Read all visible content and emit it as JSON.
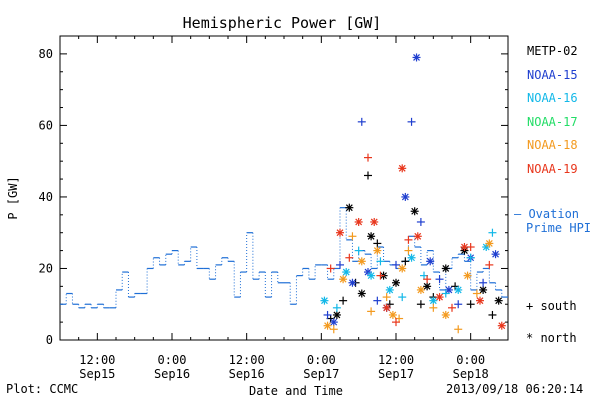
{
  "footer": {
    "plot_credit": "Plot: CCMC",
    "timestamp": "2013/09/18 06:20:14"
  },
  "legend": {
    "satellites": [
      {
        "label": "METP-02",
        "color": "#000000"
      },
      {
        "label": "NOAA-15",
        "color": "#1f3fcf"
      },
      {
        "label": "NOAA-16",
        "color": "#12b8e8"
      },
      {
        "label": "NOAA-17",
        "color": "#22dd66"
      },
      {
        "label": "NOAA-18",
        "color": "#f39a1f"
      },
      {
        "label": "NOAA-19",
        "color": "#e8361c"
      }
    ],
    "ovation_label_line1": "— Ovation",
    "ovation_label_line2": "Prime HPI",
    "ovation_color": "#1f6fd6",
    "marker_south": "+ south",
    "marker_north": "* north"
  },
  "chart_data": {
    "type": "scatter",
    "title": "Hemispheric Power [GW]",
    "ylabel": "P [GW]",
    "xlabel": "Date and Time",
    "ylim": [
      0,
      85
    ],
    "xlim_hours": [
      -18,
      54
    ],
    "x_unit": "hours since 2013-09-16 00:00 UT",
    "y_ticks": [
      0,
      20,
      40,
      60,
      80
    ],
    "x_ticks": [
      {
        "x": -12,
        "top": "12:00",
        "bottom": "Sep15"
      },
      {
        "x": 0,
        "top": "0:00",
        "bottom": "Sep16"
      },
      {
        "x": 12,
        "top": "12:00",
        "bottom": "Sep16"
      },
      {
        "x": 24,
        "top": "0:00",
        "bottom": "Sep17"
      },
      {
        "x": 36,
        "top": "12:00",
        "bottom": "Sep17"
      },
      {
        "x": 48,
        "top": "0:00",
        "bottom": "Sep18"
      }
    ],
    "ovation_series": {
      "name": "Ovation Prime HPI",
      "points": [
        [
          -18,
          10
        ],
        [
          -17,
          13
        ],
        [
          -16,
          10
        ],
        [
          -15,
          9
        ],
        [
          -14,
          10
        ],
        [
          -13,
          9
        ],
        [
          -12,
          10
        ],
        [
          -11,
          9
        ],
        [
          -10,
          9
        ],
        [
          -9,
          14
        ],
        [
          -8,
          19
        ],
        [
          -7,
          12
        ],
        [
          -6,
          13
        ],
        [
          -5,
          13
        ],
        [
          -4,
          20
        ],
        [
          -3,
          23
        ],
        [
          -2,
          21
        ],
        [
          -1,
          24
        ],
        [
          0,
          25
        ],
        [
          1,
          21
        ],
        [
          2,
          22
        ],
        [
          3,
          26
        ],
        [
          4,
          20
        ],
        [
          5,
          20
        ],
        [
          6,
          17
        ],
        [
          7,
          21
        ],
        [
          8,
          23
        ],
        [
          9,
          22
        ],
        [
          10,
          12
        ],
        [
          11,
          19
        ],
        [
          12,
          30
        ],
        [
          13,
          17
        ],
        [
          14,
          19
        ],
        [
          15,
          12
        ],
        [
          16,
          19
        ],
        [
          17,
          16
        ],
        [
          18,
          16
        ],
        [
          19,
          10
        ],
        [
          20,
          18
        ],
        [
          21,
          20
        ],
        [
          22,
          17
        ],
        [
          23,
          21
        ],
        [
          24,
          21
        ],
        [
          25,
          17
        ],
        [
          26,
          20
        ],
        [
          27,
          37
        ],
        [
          28,
          28
        ],
        [
          29,
          22
        ],
        [
          30,
          25
        ],
        [
          31,
          24
        ],
        [
          32,
          20
        ],
        [
          33,
          26
        ],
        [
          34,
          22
        ],
        [
          35,
          21
        ],
        [
          36,
          20
        ],
        [
          37,
          22
        ],
        [
          38,
          29
        ],
        [
          39,
          26
        ],
        [
          40,
          21
        ],
        [
          41,
          25
        ],
        [
          42,
          19
        ],
        [
          43,
          14
        ],
        [
          44,
          20
        ],
        [
          45,
          23
        ],
        [
          46,
          24
        ],
        [
          47,
          22
        ],
        [
          48,
          14
        ],
        [
          49,
          19
        ],
        [
          50,
          20
        ],
        [
          51,
          16
        ],
        [
          52,
          14
        ],
        [
          53,
          12
        ]
      ]
    },
    "series": [
      {
        "name": "METP-02",
        "color": "#000000",
        "points": [
          {
            "x": 25.5,
            "y": 6,
            "m": "+"
          },
          {
            "x": 26.5,
            "y": 7,
            "m": "*"
          },
          {
            "x": 27.5,
            "y": 11,
            "m": "+"
          },
          {
            "x": 28.5,
            "y": 37,
            "m": "*"
          },
          {
            "x": 29.5,
            "y": 16,
            "m": "+"
          },
          {
            "x": 30.5,
            "y": 13,
            "m": "*"
          },
          {
            "x": 31.5,
            "y": 46,
            "m": "+"
          },
          {
            "x": 32,
            "y": 29,
            "m": "*"
          },
          {
            "x": 33,
            "y": 27,
            "m": "+"
          },
          {
            "x": 34,
            "y": 18,
            "m": "*"
          },
          {
            "x": 35,
            "y": 10,
            "m": "+"
          },
          {
            "x": 36,
            "y": 16,
            "m": "*"
          },
          {
            "x": 37.5,
            "y": 22,
            "m": "+"
          },
          {
            "x": 39,
            "y": 36,
            "m": "*"
          },
          {
            "x": 40,
            "y": 10,
            "m": "+"
          },
          {
            "x": 41,
            "y": 15,
            "m": "*"
          },
          {
            "x": 42,
            "y": 12,
            "m": "+"
          },
          {
            "x": 44,
            "y": 20,
            "m": "*"
          },
          {
            "x": 45.5,
            "y": 15,
            "m": "+"
          },
          {
            "x": 47,
            "y": 25,
            "m": "*"
          },
          {
            "x": 48,
            "y": 10,
            "m": "+"
          },
          {
            "x": 50,
            "y": 14,
            "m": "*"
          },
          {
            "x": 51.5,
            "y": 7,
            "m": "+"
          },
          {
            "x": 52.5,
            "y": 11,
            "m": "*"
          }
        ]
      },
      {
        "name": "NOAA-15",
        "color": "#1f3fcf",
        "points": [
          {
            "x": 25,
            "y": 7,
            "m": "+"
          },
          {
            "x": 26,
            "y": 5,
            "m": "*"
          },
          {
            "x": 27,
            "y": 21,
            "m": "+"
          },
          {
            "x": 29,
            "y": 16,
            "m": "*"
          },
          {
            "x": 30.5,
            "y": 61,
            "m": "+"
          },
          {
            "x": 31.5,
            "y": 19,
            "m": "*"
          },
          {
            "x": 33,
            "y": 11,
            "m": "+"
          },
          {
            "x": 34.5,
            "y": 9,
            "m": "*"
          },
          {
            "x": 36,
            "y": 21,
            "m": "+"
          },
          {
            "x": 37.5,
            "y": 40,
            "m": "*"
          },
          {
            "x": 38.5,
            "y": 61,
            "m": "+"
          },
          {
            "x": 39.3,
            "y": 79,
            "m": "*"
          },
          {
            "x": 40,
            "y": 33,
            "m": "+"
          },
          {
            "x": 41.5,
            "y": 22,
            "m": "*"
          },
          {
            "x": 43,
            "y": 17,
            "m": "+"
          },
          {
            "x": 44.5,
            "y": 14,
            "m": "*"
          },
          {
            "x": 46,
            "y": 10,
            "m": "+"
          },
          {
            "x": 48,
            "y": 23,
            "m": "*"
          },
          {
            "x": 50,
            "y": 16,
            "m": "+"
          },
          {
            "x": 52,
            "y": 24,
            "m": "*"
          }
        ]
      },
      {
        "name": "NOAA-16",
        "color": "#12b8e8",
        "points": [
          {
            "x": 24.5,
            "y": 11,
            "m": "*"
          },
          {
            "x": 26.5,
            "y": 9,
            "m": "+"
          },
          {
            "x": 28,
            "y": 19,
            "m": "*"
          },
          {
            "x": 30,
            "y": 25,
            "m": "+"
          },
          {
            "x": 32,
            "y": 18,
            "m": "*"
          },
          {
            "x": 33.5,
            "y": 22,
            "m": "+"
          },
          {
            "x": 35,
            "y": 14,
            "m": "*"
          },
          {
            "x": 37,
            "y": 12,
            "m": "+"
          },
          {
            "x": 38.5,
            "y": 23,
            "m": "*"
          },
          {
            "x": 40.5,
            "y": 18,
            "m": "+"
          },
          {
            "x": 42,
            "y": 11,
            "m": "*"
          },
          {
            "x": 44,
            "y": 13,
            "m": "+"
          },
          {
            "x": 46,
            "y": 14,
            "m": "*"
          },
          {
            "x": 48,
            "y": 23,
            "m": "+"
          },
          {
            "x": 50.5,
            "y": 26,
            "m": "*"
          },
          {
            "x": 51.5,
            "y": 30,
            "m": "+"
          }
        ]
      },
      {
        "name": "NOAA-17",
        "color": "#22dd66",
        "points": []
      },
      {
        "name": "NOAA-18",
        "color": "#f39a1f",
        "points": [
          {
            "x": 25,
            "y": 4,
            "m": "*"
          },
          {
            "x": 26,
            "y": 3,
            "m": "+"
          },
          {
            "x": 27.5,
            "y": 17,
            "m": "*"
          },
          {
            "x": 29,
            "y": 29,
            "m": "+"
          },
          {
            "x": 30.5,
            "y": 22,
            "m": "*"
          },
          {
            "x": 32,
            "y": 8,
            "m": "+"
          },
          {
            "x": 33,
            "y": 25,
            "m": "*"
          },
          {
            "x": 34.5,
            "y": 12,
            "m": "+"
          },
          {
            "x": 35.5,
            "y": 7,
            "m": "*"
          },
          {
            "x": 36.5,
            "y": 6,
            "m": "+"
          },
          {
            "x": 37,
            "y": 20,
            "m": "*"
          },
          {
            "x": 38,
            "y": 25,
            "m": "+"
          },
          {
            "x": 40,
            "y": 14,
            "m": "*"
          },
          {
            "x": 42,
            "y": 9,
            "m": "+"
          },
          {
            "x": 44,
            "y": 7,
            "m": "*"
          },
          {
            "x": 46,
            "y": 3,
            "m": "+"
          },
          {
            "x": 47.5,
            "y": 18,
            "m": "*"
          },
          {
            "x": 49,
            "y": 13,
            "m": "+"
          },
          {
            "x": 51,
            "y": 27,
            "m": "*"
          }
        ]
      },
      {
        "name": "NOAA-19",
        "color": "#e8361c",
        "points": [
          {
            "x": 25.5,
            "y": 20,
            "m": "+"
          },
          {
            "x": 27,
            "y": 30,
            "m": "*"
          },
          {
            "x": 28.5,
            "y": 23,
            "m": "+"
          },
          {
            "x": 30,
            "y": 33,
            "m": "*"
          },
          {
            "x": 31.5,
            "y": 51,
            "m": "+"
          },
          {
            "x": 32.5,
            "y": 33,
            "m": "*"
          },
          {
            "x": 33.5,
            "y": 18,
            "m": "+"
          },
          {
            "x": 34.5,
            "y": 9,
            "m": "*"
          },
          {
            "x": 36,
            "y": 5,
            "m": "+"
          },
          {
            "x": 37,
            "y": 48,
            "m": "*"
          },
          {
            "x": 38,
            "y": 28,
            "m": "+"
          },
          {
            "x": 39.5,
            "y": 29,
            "m": "*"
          },
          {
            "x": 41,
            "y": 17,
            "m": "+"
          },
          {
            "x": 43,
            "y": 12,
            "m": "*"
          },
          {
            "x": 45,
            "y": 9,
            "m": "+"
          },
          {
            "x": 47,
            "y": 26,
            "m": "*"
          },
          {
            "x": 48,
            "y": 26,
            "m": "+"
          },
          {
            "x": 49.5,
            "y": 11,
            "m": "*"
          },
          {
            "x": 51,
            "y": 21,
            "m": "+"
          },
          {
            "x": 53,
            "y": 4,
            "m": "*"
          }
        ]
      }
    ]
  }
}
